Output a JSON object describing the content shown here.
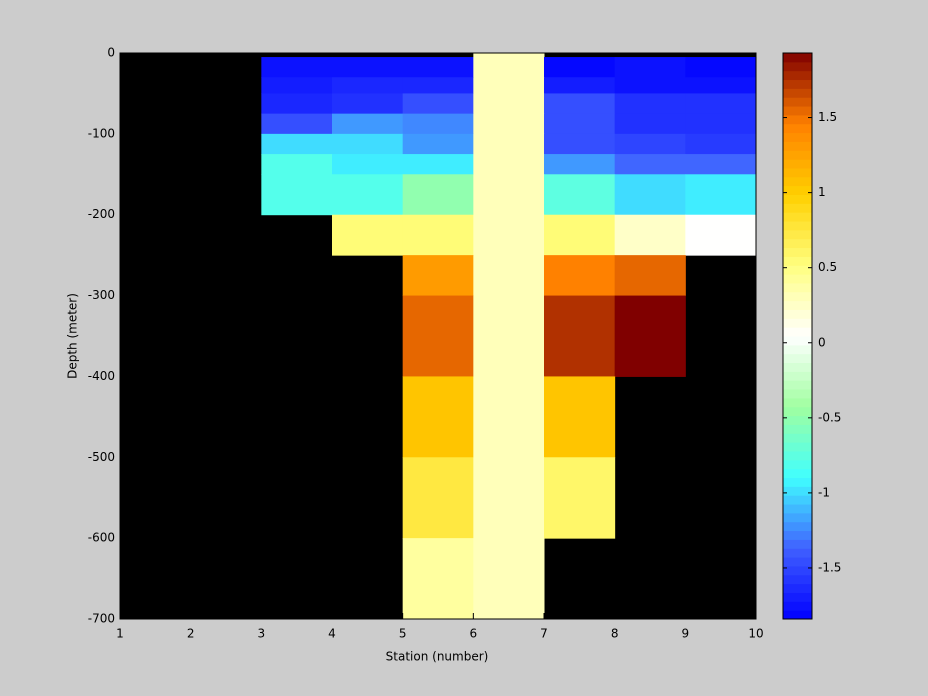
{
  "chart_data": {
    "type": "heatmap",
    "xlabel": "Station (number)",
    "ylabel": "Depth (meter)",
    "xbins": [
      1,
      2,
      3,
      4,
      5,
      6,
      7,
      8,
      9,
      10
    ],
    "ybins": [
      0,
      -5,
      -30,
      -50,
      -75,
      -100,
      -125,
      -150,
      -200,
      -250,
      -300,
      -400,
      -500,
      -600,
      -700
    ],
    "values": [
      [
        null,
        null,
        null,
        null,
        null,
        0.3,
        null,
        null,
        null
      ],
      [
        null,
        null,
        -1.75,
        -1.75,
        -1.75,
        0.3,
        -1.8,
        -1.75,
        -1.8
      ],
      [
        null,
        null,
        -1.7,
        -1.65,
        -1.65,
        0.3,
        -1.7,
        -1.75,
        -1.75
      ],
      [
        null,
        null,
        -1.65,
        -1.6,
        -1.45,
        0.3,
        -1.45,
        -1.6,
        -1.6
      ],
      [
        null,
        null,
        -1.45,
        -1.2,
        -1.25,
        0.3,
        -1.45,
        -1.6,
        -1.6
      ],
      [
        null,
        null,
        -1.0,
        -1.0,
        -1.2,
        0.3,
        -1.45,
        -1.5,
        -1.55
      ],
      [
        null,
        null,
        -0.8,
        -0.95,
        -0.95,
        0.3,
        -1.2,
        -1.35,
        -1.35
      ],
      [
        null,
        null,
        -0.8,
        -0.8,
        -0.5,
        0.3,
        -0.75,
        -1.0,
        -0.95
      ],
      [
        null,
        null,
        null,
        0.55,
        0.55,
        0.3,
        0.55,
        0.25,
        0.05
      ],
      [
        null,
        null,
        null,
        null,
        1.3,
        0.3,
        1.45,
        1.55,
        null
      ],
      [
        null,
        null,
        null,
        null,
        1.55,
        0.3,
        1.75,
        1.93,
        null
      ],
      [
        null,
        null,
        null,
        null,
        1.05,
        0.3,
        1.05,
        null,
        null
      ],
      [
        null,
        null,
        null,
        null,
        0.75,
        0.3,
        0.6,
        null,
        null
      ],
      [
        null,
        null,
        null,
        null,
        0.4,
        0.3,
        null,
        null,
        null
      ]
    ],
    "xlim": [
      1,
      10
    ],
    "xticks": [
      1,
      2,
      3,
      4,
      5,
      6,
      7,
      8,
      9,
      10
    ],
    "ylim": [
      -700,
      0
    ],
    "yticks": [
      0,
      -100,
      -200,
      -300,
      -400,
      -500,
      -600,
      -700
    ],
    "clim": [
      -1.84,
      1.93
    ],
    "cticks": [
      -1.5,
      -1,
      -0.5,
      0,
      0.5,
      1,
      1.5
    ],
    "colormap": [
      "#0000ff",
      "#4060ff",
      "#40ffff",
      "#a0ffa0",
      "#ffffff",
      "#ffff80",
      "#ffd000",
      "#ff8000",
      "#800000"
    ],
    "background": "#000000"
  }
}
